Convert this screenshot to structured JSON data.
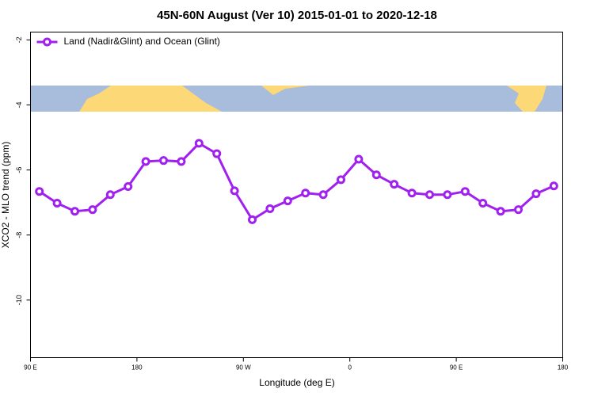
{
  "chart_data": {
    "type": "line",
    "title": "45N-60N August (Ver 10)   2015-01-01 to 2020-12-18",
    "x_label": "Longitude (deg E)",
    "y_label": "XCO2 - MLO trend (ppm)",
    "x": [
      97.5,
      112.5,
      127.5,
      142.5,
      157.5,
      172.5,
      187.5,
      202.5,
      217.5,
      232.5,
      247.5,
      262.5,
      277.5,
      292.5,
      307.5,
      322.5,
      337.5,
      352.5,
      367.5,
      382.5,
      397.5,
      412.5,
      427.5,
      442.5,
      457.5,
      472.5,
      487.5,
      502.5,
      517.5,
      532.5
    ],
    "series": [
      {
        "name": "Land (Nadir&Glint) and Ocean (Glint)",
        "color": "#a020f0",
        "values": [
          -6.66,
          -7.02,
          -7.27,
          -7.22,
          -6.76,
          -6.51,
          -5.74,
          -5.71,
          -5.74,
          -5.18,
          -5.5,
          -6.64,
          -7.53,
          -7.19,
          -6.95,
          -6.71,
          -6.76,
          -6.3,
          -5.67,
          -6.15,
          -6.44,
          -6.71,
          -6.76,
          -6.76,
          -6.66,
          -7.02,
          -7.27,
          -7.22,
          -6.73,
          -6.49
        ]
      }
    ],
    "xlim": [
      90,
      540
    ],
    "xticks": [
      {
        "value": 90,
        "label": "90 E"
      },
      180,
      {
        "value": 270,
        "label": "90 W"
      },
      {
        "value": 360,
        "label": "0"
      },
      {
        "value": 450,
        "label": "90 E"
      },
      {
        "value": 540,
        "label": "180"
      }
    ],
    "ylim": [
      -11.77,
      -1.76
    ],
    "yticks": [
      -2,
      -4,
      -6,
      -8,
      -10
    ],
    "legend": "top-left"
  }
}
